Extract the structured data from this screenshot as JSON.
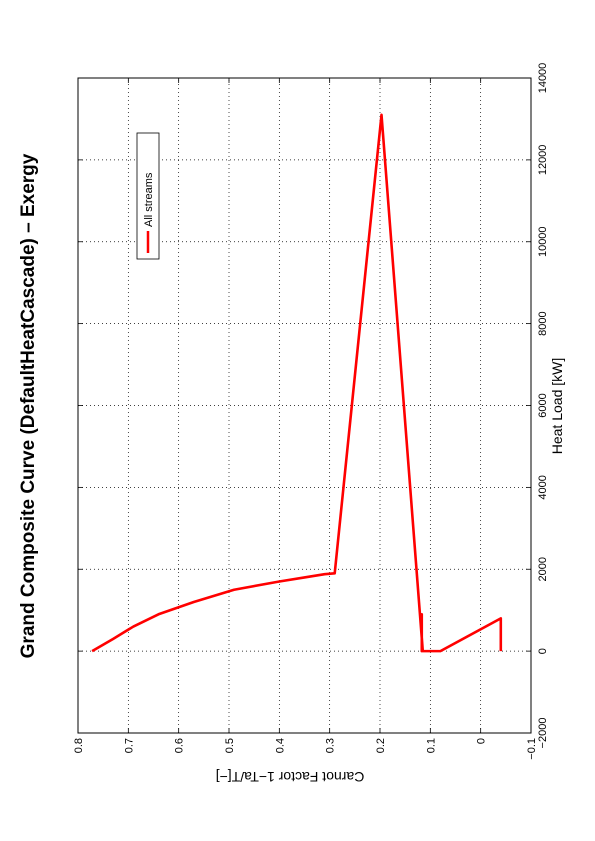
{
  "chart_data": {
    "type": "line",
    "title": "Grand Composite Curve (DefaultHeatCascade) – Exergy",
    "xlabel": "Heat Load [kW]",
    "ylabel": "Carnot Factor 1−Ta/T[−]",
    "xlim": [
      -2000,
      14000
    ],
    "ylim": [
      -0.1,
      0.8
    ],
    "x_ticks": [
      "−2000",
      "0",
      "2000",
      "4000",
      "6000",
      "8000",
      "10000",
      "12000",
      "14000"
    ],
    "y_ticks": [
      "0.8",
      "0.7",
      "0.6",
      "0.5",
      "0.4",
      "0.3",
      "0.2",
      "0.1",
      "0",
      "−0.1"
    ],
    "grid": true,
    "legend_position": "top-right",
    "orientation": "rotated 90° counter-clockwise",
    "series_color": "#ff0000",
    "series": [
      {
        "name": "All streams",
        "points": [
          [
            0,
            0.772
          ],
          [
            300,
            0.73
          ],
          [
            600,
            0.69
          ],
          [
            900,
            0.64
          ],
          [
            1200,
            0.57
          ],
          [
            1500,
            0.49
          ],
          [
            1700,
            0.4
          ],
          [
            1800,
            0.35
          ],
          [
            1880,
            0.31
          ],
          [
            1900,
            0.29
          ],
          [
            13100,
            0.197
          ],
          [
            0,
            0.115
          ],
          [
            850,
            0.12
          ],
          [
            880,
            0.117
          ],
          [
            900,
            0.117
          ],
          [
            0,
            0.117
          ],
          [
            0,
            0.08
          ],
          [
            800,
            -0.04
          ],
          [
            0,
            -0.04
          ]
        ]
      }
    ]
  }
}
